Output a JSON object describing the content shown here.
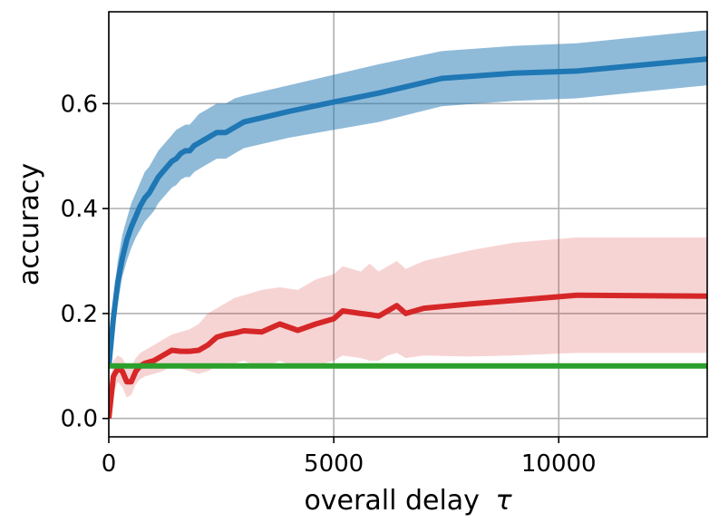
{
  "chart_data": {
    "type": "line",
    "xlabel": "overall delay",
    "xlabel_symbol": "τ",
    "ylabel": "accuracy",
    "xlim": [
      0,
      13300
    ],
    "ylim": [
      -0.035,
      0.775
    ],
    "xticks": [
      0,
      5000,
      10000
    ],
    "xtick_labels": [
      "0",
      "5000",
      "10000"
    ],
    "yticks": [
      0.0,
      0.2,
      0.4,
      0.6
    ],
    "ytick_labels": [
      "0.0",
      "0.2",
      "0.4",
      "0.6"
    ],
    "grid": true,
    "series": [
      {
        "color": "#1f77b4",
        "x": [
          0,
          100,
          200,
          300,
          400,
          500,
          600,
          700,
          800,
          900,
          1000,
          1100,
          1200,
          1300,
          1400,
          1500,
          1600,
          1700,
          1800,
          1900,
          2000,
          2100,
          2200,
          2300,
          2400,
          2500,
          2600,
          2700,
          2800,
          3000,
          3500,
          4000,
          5000,
          6000,
          7400,
          9000,
          10400,
          13300
        ],
        "values": [
          0.1,
          0.19,
          0.26,
          0.305,
          0.34,
          0.365,
          0.385,
          0.405,
          0.42,
          0.43,
          0.445,
          0.46,
          0.47,
          0.48,
          0.49,
          0.495,
          0.505,
          0.51,
          0.51,
          0.52,
          0.525,
          0.53,
          0.535,
          0.54,
          0.545,
          0.545,
          0.545,
          0.55,
          0.555,
          0.565,
          0.575,
          0.585,
          0.603,
          0.62,
          0.648,
          0.658,
          0.662,
          0.685
        ],
        "upper": [
          0.13,
          0.23,
          0.3,
          0.35,
          0.38,
          0.41,
          0.43,
          0.45,
          0.47,
          0.48,
          0.495,
          0.51,
          0.52,
          0.53,
          0.54,
          0.55,
          0.555,
          0.56,
          0.56,
          0.57,
          0.58,
          0.585,
          0.59,
          0.595,
          0.6,
          0.6,
          0.6,
          0.605,
          0.61,
          0.615,
          0.625,
          0.635,
          0.655,
          0.675,
          0.7,
          0.71,
          0.715,
          0.74
        ],
        "lower": [
          0.08,
          0.16,
          0.22,
          0.27,
          0.3,
          0.325,
          0.345,
          0.36,
          0.375,
          0.385,
          0.395,
          0.41,
          0.42,
          0.43,
          0.44,
          0.445,
          0.455,
          0.46,
          0.46,
          0.47,
          0.475,
          0.48,
          0.485,
          0.49,
          0.495,
          0.495,
          0.495,
          0.5,
          0.505,
          0.515,
          0.525,
          0.535,
          0.55,
          0.565,
          0.595,
          0.605,
          0.61,
          0.635
        ]
      },
      {
        "color": "#d62728",
        "x": [
          0,
          100,
          200,
          300,
          400,
          500,
          600,
          700,
          800,
          1000,
          1200,
          1400,
          1600,
          1800,
          2000,
          2200,
          2400,
          2600,
          2800,
          3000,
          3400,
          3800,
          4200,
          4600,
          5000,
          5200,
          5600,
          5800,
          6000,
          6200,
          6400,
          6600,
          7000,
          8000,
          9000,
          10400,
          13300
        ],
        "values": [
          0.0,
          0.08,
          0.095,
          0.09,
          0.07,
          0.07,
          0.09,
          0.1,
          0.105,
          0.11,
          0.12,
          0.13,
          0.128,
          0.128,
          0.13,
          0.14,
          0.155,
          0.16,
          0.163,
          0.167,
          0.165,
          0.18,
          0.168,
          0.18,
          0.19,
          0.205,
          0.2,
          0.198,
          0.195,
          0.205,
          0.215,
          0.2,
          0.21,
          0.218,
          0.225,
          0.235,
          0.233
        ],
        "upper": [
          0.05,
          0.11,
          0.12,
          0.115,
          0.1,
          0.1,
          0.115,
          0.125,
          0.13,
          0.14,
          0.15,
          0.16,
          0.165,
          0.17,
          0.18,
          0.2,
          0.21,
          0.22,
          0.23,
          0.235,
          0.245,
          0.25,
          0.245,
          0.265,
          0.275,
          0.29,
          0.28,
          0.295,
          0.28,
          0.29,
          0.3,
          0.285,
          0.3,
          0.32,
          0.335,
          0.345,
          0.345
        ],
        "lower": [
          0.0,
          0.05,
          0.07,
          0.06,
          0.04,
          0.045,
          0.065,
          0.075,
          0.08,
          0.085,
          0.09,
          0.1,
          0.095,
          0.09,
          0.085,
          0.09,
          0.1,
          0.105,
          0.105,
          0.11,
          0.095,
          0.11,
          0.095,
          0.1,
          0.11,
          0.12,
          0.115,
          0.11,
          0.11,
          0.12,
          0.125,
          0.115,
          0.12,
          0.118,
          0.12,
          0.125,
          0.125
        ]
      },
      {
        "color": "#2ca02c",
        "x": [
          0,
          13300
        ],
        "values": [
          0.1,
          0.1
        ]
      }
    ]
  }
}
